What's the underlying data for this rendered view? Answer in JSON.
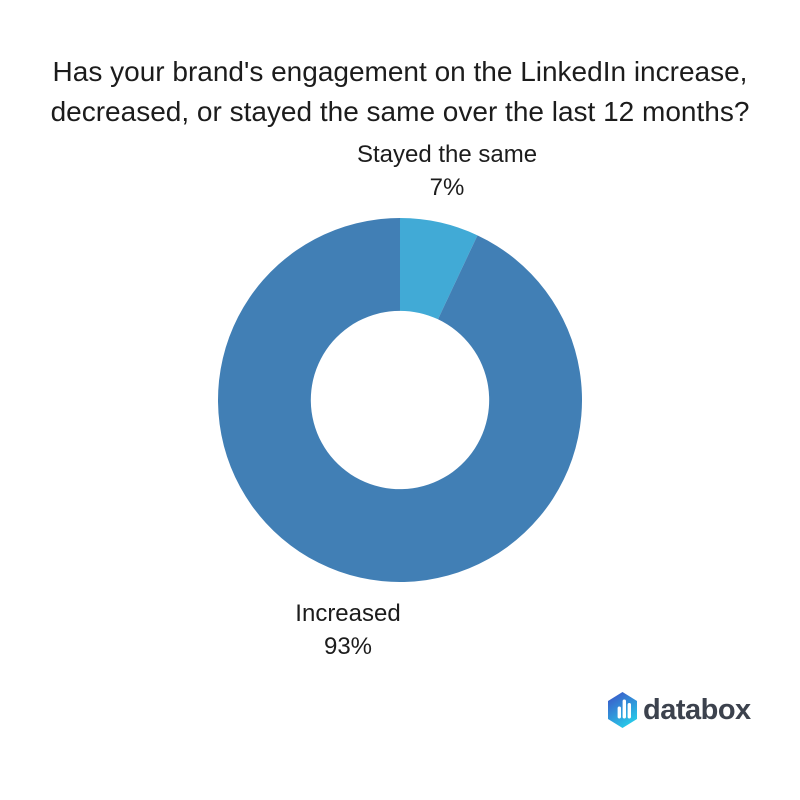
{
  "page": {
    "background": "#FFFFFF",
    "text_color": "#1C1C1C"
  },
  "title": {
    "lines": [
      "Has your brand's engagement on the LinkedIn increase,",
      "decreased, or stayed the same over the last 12 months?"
    ]
  },
  "chart_data": {
    "type": "pie",
    "subtype": "donut",
    "title": "Has your brand's engagement on the LinkedIn increase, decreased, or stayed the same over the last 12 months?",
    "categories": [
      "Stayed the same",
      "Increased"
    ],
    "values": [
      7,
      93
    ],
    "unit": "%",
    "slices": [
      {
        "label": "Stayed the same",
        "value": 7,
        "pct_label": "7%",
        "color": "#41AAD6"
      },
      {
        "label": "Increased",
        "value": 93,
        "pct_label": "93%",
        "color": "#417FB5"
      }
    ],
    "start_angle_deg": -90,
    "direction": "clockwise",
    "inner_radius_ratio": 0.49,
    "legend": "none",
    "labels_position": "outside",
    "grid": "off"
  },
  "branding": {
    "logo_text": "databox",
    "logo_colors": {
      "hex_top": "#3D4EC6",
      "hex_bottom": "#28C8E8",
      "bars": "#FFFFFF",
      "text": "#3C424D"
    }
  }
}
